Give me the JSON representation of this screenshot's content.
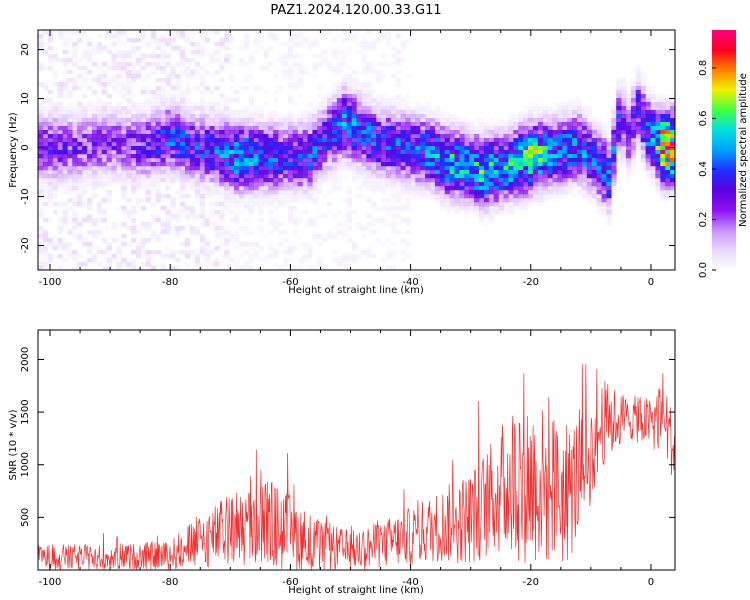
{
  "title": "PAZ1.2024.120.00.33.G11",
  "colors": {
    "snr_line": "#f03030",
    "spectrogram_cmap": [
      "#ffffff",
      "#e8d8ff",
      "#c890ff",
      "#8a10f0",
      "#5a00e0",
      "#2030ff",
      "#00a0ff",
      "#00e0e0",
      "#40ff40",
      "#f0f000",
      "#ff8000",
      "#ff0020",
      "#ff0080"
    ]
  },
  "chart_data": [
    {
      "type": "heatmap",
      "xlabel": "Height of straight line (km)",
      "ylabel": "Frequency (Hz)",
      "xlim": [
        -102,
        4
      ],
      "ylim": [
        -25,
        24
      ],
      "xticks": [
        -100,
        -80,
        -60,
        -40,
        -20,
        0
      ],
      "yticks": [
        -20,
        -10,
        0,
        10,
        20
      ],
      "colorbar": {
        "label": "Normalized spectral amplitude",
        "range": [
          0,
          0.95
        ],
        "ticks": [
          0.0,
          0.2,
          0.4,
          0.6,
          0.8
        ]
      },
      "main_ridge": [
        {
          "x": -100,
          "y": 0,
          "a": 0.35
        },
        {
          "x": -95,
          "y": 0,
          "a": 0.3
        },
        {
          "x": -90,
          "y": 1,
          "a": 0.3
        },
        {
          "x": -85,
          "y": 0,
          "a": 0.32
        },
        {
          "x": -80,
          "y": 2,
          "a": 0.45
        },
        {
          "x": -76,
          "y": 0,
          "a": 0.4
        },
        {
          "x": -72,
          "y": -1,
          "a": 0.45
        },
        {
          "x": -69,
          "y": -2,
          "a": 0.55
        },
        {
          "x": -65,
          "y": -2,
          "a": 0.5
        },
        {
          "x": -61,
          "y": -2,
          "a": 0.4
        },
        {
          "x": -57,
          "y": -2,
          "a": 0.45
        },
        {
          "x": -54,
          "y": 2,
          "a": 0.4
        },
        {
          "x": -51,
          "y": 5,
          "a": 0.5
        },
        {
          "x": -45,
          "y": 1,
          "a": 0.45
        },
        {
          "x": -41,
          "y": 0,
          "a": 0.45
        },
        {
          "x": -37,
          "y": -1,
          "a": 0.5
        },
        {
          "x": -34,
          "y": -3,
          "a": 0.6
        },
        {
          "x": -30,
          "y": -4,
          "a": 0.55
        },
        {
          "x": -28,
          "y": -5,
          "a": 0.65
        },
        {
          "x": -24,
          "y": -4,
          "a": 0.55
        },
        {
          "x": -20,
          "y": -2,
          "a": 0.7
        },
        {
          "x": -16,
          "y": -1,
          "a": 0.5
        },
        {
          "x": -12,
          "y": 0,
          "a": 0.5
        },
        {
          "x": -9,
          "y": -3,
          "a": 0.45
        },
        {
          "x": -7,
          "y": -6,
          "a": 0.5
        },
        {
          "x": -5,
          "y": 8,
          "a": 0.4
        },
        {
          "x": -4,
          "y": 2,
          "a": 0.35
        },
        {
          "x": -2,
          "y": 8,
          "a": 0.4
        },
        {
          "x": -1,
          "y": 4,
          "a": 0.45
        },
        {
          "x": 1,
          "y": 1,
          "a": 0.6
        },
        {
          "x": 2,
          "y": 0,
          "a": 0.95
        }
      ]
    },
    {
      "type": "line",
      "xlabel": "Height of straight line (km)",
      "ylabel": "SNR (10 * v/v)",
      "xlim": [
        -102,
        4
      ],
      "ylim": [
        0,
        2280
      ],
      "xticks": [
        -100,
        -80,
        -60,
        -40,
        -20,
        0
      ],
      "yticks": [
        500,
        1000,
        1500,
        2000
      ],
      "envelope": [
        {
          "x": -102,
          "base": 120,
          "amp": 180
        },
        {
          "x": -90,
          "base": 120,
          "amp": 170
        },
        {
          "x": -80,
          "base": 140,
          "amp": 200
        },
        {
          "x": -76,
          "base": 250,
          "amp": 350
        },
        {
          "x": -70,
          "base": 380,
          "amp": 500
        },
        {
          "x": -64,
          "base": 450,
          "amp": 650
        },
        {
          "x": -60,
          "base": 350,
          "amp": 520
        },
        {
          "x": -55,
          "base": 220,
          "amp": 350
        },
        {
          "x": -50,
          "base": 180,
          "amp": 280
        },
        {
          "x": -45,
          "base": 240,
          "amp": 320
        },
        {
          "x": -40,
          "base": 320,
          "amp": 400
        },
        {
          "x": -35,
          "base": 420,
          "amp": 500
        },
        {
          "x": -30,
          "base": 500,
          "amp": 650
        },
        {
          "x": -26,
          "base": 700,
          "amp": 800
        },
        {
          "x": -22,
          "base": 900,
          "amp": 1200
        },
        {
          "x": -18,
          "base": 800,
          "amp": 1100
        },
        {
          "x": -14,
          "base": 700,
          "amp": 1000
        },
        {
          "x": -10,
          "base": 1100,
          "amp": 700
        },
        {
          "x": -8,
          "base": 1400,
          "amp": 600
        },
        {
          "x": -4,
          "base": 1450,
          "amp": 300
        },
        {
          "x": 0,
          "base": 1400,
          "amp": 350
        },
        {
          "x": 2,
          "base": 1500,
          "amp": 600
        },
        {
          "x": 4,
          "base": 1100,
          "amp": 400
        }
      ]
    }
  ]
}
